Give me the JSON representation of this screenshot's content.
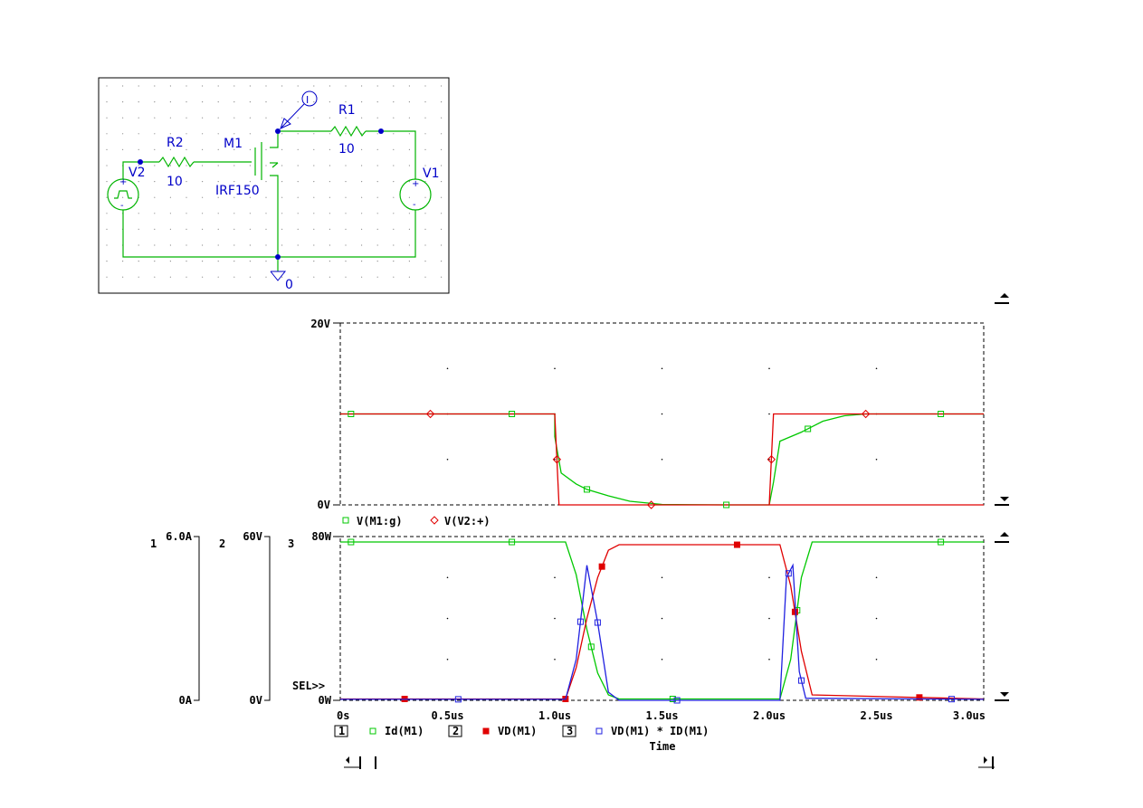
{
  "schematic": {
    "labels": {
      "r2_name": "R2",
      "r2_value": "10",
      "r1_name": "R1",
      "r1_value": "10",
      "m1_name": "M1",
      "m1_model": "IRF150",
      "v1_name": "V1",
      "v2_name": "V2",
      "ground": "0",
      "probe": "I"
    }
  },
  "chart_data": [
    {
      "type": "line",
      "x_ticks": [
        "0s",
        "0.5us",
        "1.0us",
        "1.5us",
        "2.0us",
        "2.5us",
        "3.0us"
      ],
      "xlim": [
        0,
        3.0
      ],
      "xunit": "us",
      "y_ticks": [
        "20V",
        "0V"
      ],
      "ylim": [
        0,
        20
      ],
      "grid": "dotted",
      "series": [
        {
          "name": "V(M1:g)",
          "color": "#00c800",
          "marker": "square-open",
          "x": [
            0,
            1.0,
            1.0,
            1.03,
            1.1,
            1.15,
            1.25,
            1.35,
            1.5,
            1.8,
            2.0,
            2.02,
            2.05,
            2.15,
            2.25,
            2.35,
            2.45,
            3.0
          ],
          "y": [
            10,
            10,
            7.5,
            3.5,
            2.3,
            1.7,
            1.0,
            0.4,
            0.05,
            0,
            0,
            2.5,
            7,
            8,
            9.2,
            9.8,
            10,
            10
          ]
        },
        {
          "name": "V(V2:+)",
          "color": "#e00000",
          "marker": "diamond-open",
          "x": [
            0,
            1.0,
            1.02,
            3.0
          ],
          "y": [
            10,
            10,
            0,
            0
          ],
          "x2": [
            2.0,
            2.02,
            3.0
          ],
          "y2": [
            0,
            10,
            10
          ]
        }
      ]
    },
    {
      "type": "line",
      "x_ticks": [
        "0s",
        "0.5us",
        "1.0us",
        "1.5us",
        "2.0us",
        "2.5us",
        "3.0us"
      ],
      "xlim": [
        0,
        3.0
      ],
      "xlabel": "Time",
      "axes": [
        {
          "id": "1",
          "ticks": [
            "6.0A",
            "0A"
          ],
          "ylim": [
            0,
            6
          ]
        },
        {
          "id": "2",
          "ticks": [
            "60V",
            "0V"
          ],
          "ylim": [
            0,
            60
          ]
        },
        {
          "id": "3",
          "ticks": [
            "80W",
            "0W"
          ],
          "ylim": [
            0,
            80
          ]
        }
      ],
      "sel_label": "SEL>>",
      "series": [
        {
          "axis": "1",
          "name": "Id(M1)",
          "color": "#00c800",
          "marker": "square-open",
          "x": [
            0,
            1.05,
            1.1,
            1.15,
            1.2,
            1.25,
            1.3,
            2.05,
            2.1,
            2.15,
            2.2,
            3.0
          ],
          "y": [
            5.8,
            5.8,
            4.6,
            2.6,
            1.0,
            0.2,
            0.05,
            0.05,
            1.5,
            4.5,
            5.8,
            5.8
          ]
        },
        {
          "axis": "2",
          "name": "VD(M1)",
          "color": "#e00000",
          "marker": "square-filled",
          "x": [
            0,
            1.05,
            1.1,
            1.15,
            1.2,
            1.25,
            1.3,
            2.05,
            2.1,
            2.15,
            2.2,
            3.0
          ],
          "y": [
            0.5,
            0.5,
            12,
            30,
            45,
            55,
            57,
            57,
            42,
            18,
            2,
            0.5
          ]
        },
        {
          "axis": "3",
          "name": "VD(M1) * ID(M1)",
          "color": "#2020e0",
          "marker": "square-open",
          "x": [
            0,
            1.05,
            1.1,
            1.15,
            1.2,
            1.25,
            1.3,
            2.05,
            2.08,
            2.11,
            2.14,
            2.17,
            3.0
          ],
          "y": [
            0.5,
            0.5,
            20,
            66,
            38,
            4,
            0,
            0,
            60,
            66,
            14,
            1,
            0.5
          ]
        }
      ]
    }
  ]
}
